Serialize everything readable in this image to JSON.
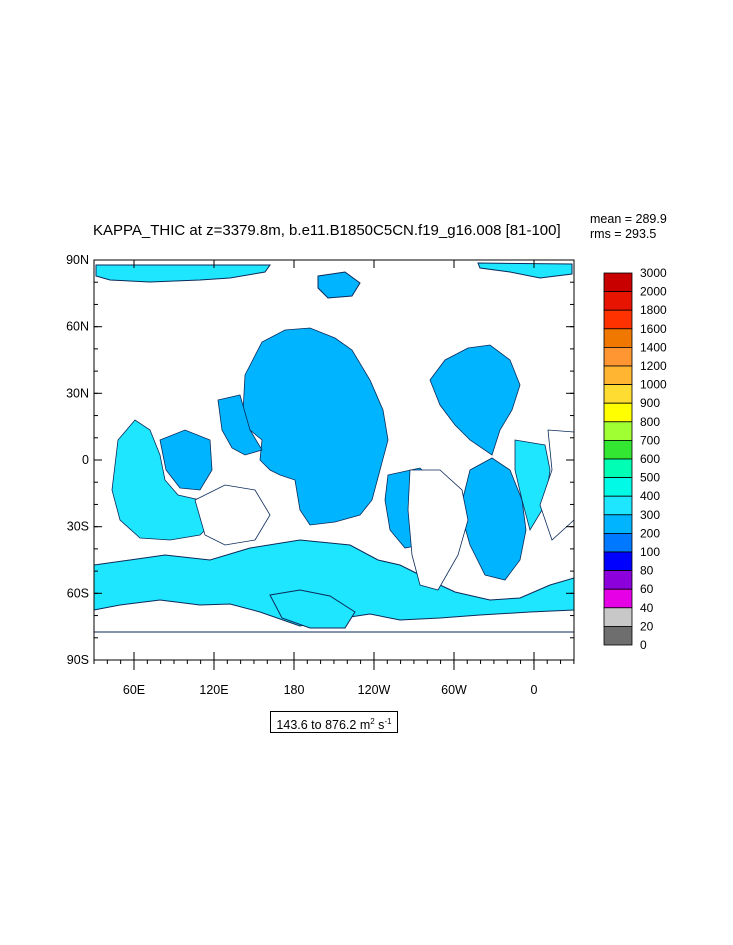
{
  "plot": {
    "title": "KAPPA_THIC at z=3379.8m, b.e11.B1850C5CN.f19_g16.008 [81-100]",
    "mean_label": "mean = 289.9",
    "rms_label": "rms = 293.5",
    "range_text": "143.6 to 876.2 m",
    "range_unit_exp1": "2",
    "range_unit_s": " s",
    "range_unit_exp2": "-1"
  },
  "map": {
    "lat_ticks": [
      "90N",
      "60N",
      "30N",
      "0",
      "30S",
      "60S",
      "90S"
    ],
    "lon_ticks": [
      "60E",
      "120E",
      "180",
      "120W",
      "60W",
      "0"
    ],
    "land_color": "#ffffff",
    "dominant_fill": "#1ee6ff"
  },
  "colorbar": {
    "levels": [
      "3000",
      "2000",
      "1800",
      "1600",
      "1400",
      "1200",
      "1000",
      "900",
      "800",
      "700",
      "600",
      "500",
      "400",
      "300",
      "200",
      "100",
      "80",
      "60",
      "40",
      "20",
      "0"
    ],
    "colors": [
      "#c80000",
      "#e61400",
      "#ff3200",
      "#f07800",
      "#ff9632",
      "#ffb432",
      "#ffdc32",
      "#ffff00",
      "#a0ff32",
      "#32e632",
      "#00ffb4",
      "#00fae6",
      "#1ee6ff",
      "#00b4ff",
      "#0078ff",
      "#0000ff",
      "#8c00dc",
      "#e600e6",
      "#c8c8c8",
      "#6e6e6e"
    ]
  }
}
